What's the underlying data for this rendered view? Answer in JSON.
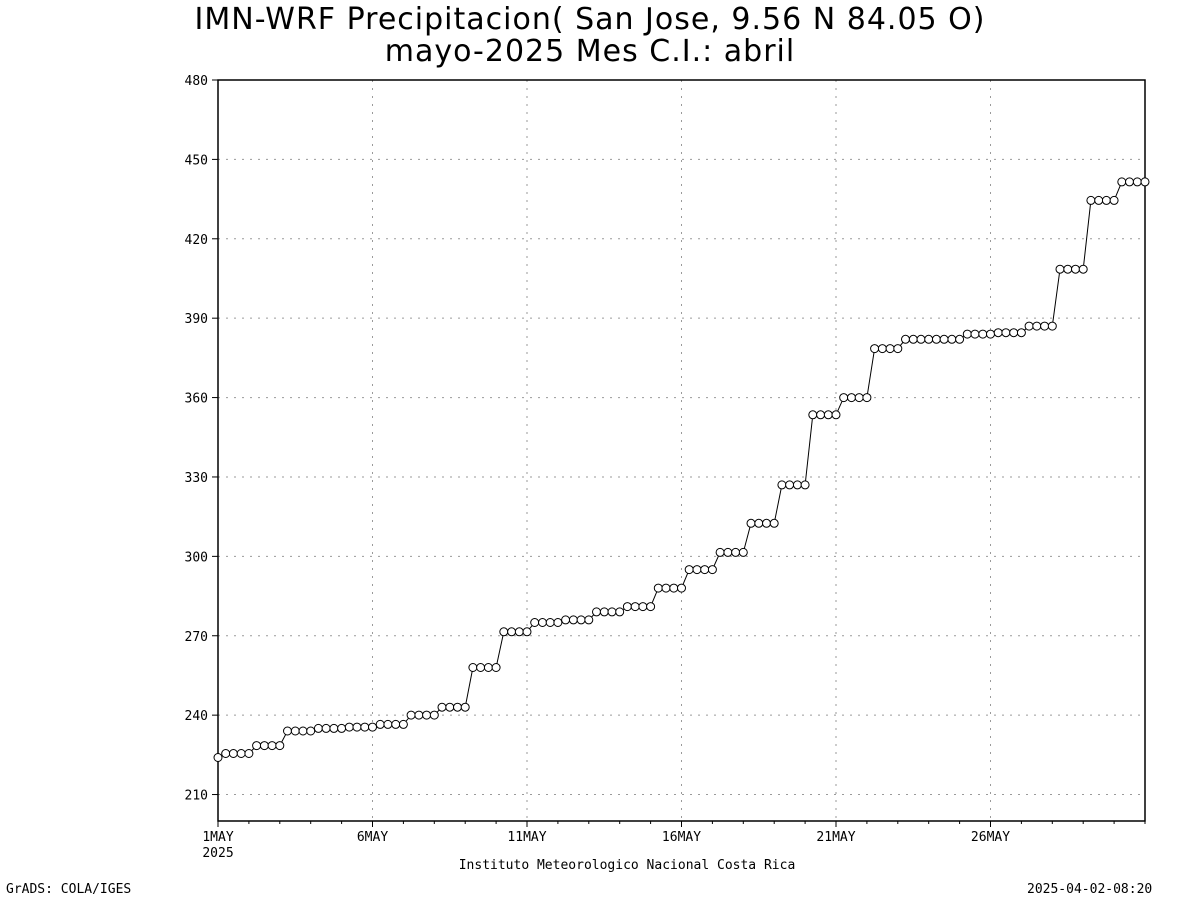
{
  "chart_data": {
    "type": "line",
    "title": "IMN-WRF  Precipitacion( San Jose, 9.56  N 84.05  O)",
    "subtitle": "mayo-2025 Mes C.I.: abril",
    "xlabel": "Instituto Meteorologico Nacional Costa Rica",
    "ylabel": "",
    "ylim": [
      200,
      480
    ],
    "xlim_days": [
      1,
      31
    ],
    "y_ticks": [
      "210",
      "240",
      "270",
      "300",
      "330",
      "360",
      "390",
      "420",
      "450",
      "480"
    ],
    "x_ticks": [
      {
        "day": 1,
        "label": "1MAY",
        "sublabel": "2025"
      },
      {
        "day": 6,
        "label": "6MAY"
      },
      {
        "day": 11,
        "label": "11MAY"
      },
      {
        "day": 16,
        "label": "16MAY"
      },
      {
        "day": 21,
        "label": "21MAY"
      },
      {
        "day": 26,
        "label": "26MAY"
      }
    ],
    "grid": true,
    "marker": "open-circle",
    "series": [
      {
        "x_start_day": 1,
        "step_per_point_day": 0.25,
        "values": [
          224,
          225.5,
          225.5,
          225.5,
          225.5,
          228.5,
          228.5,
          228.5,
          228.5,
          234,
          234,
          234,
          234,
          235,
          235,
          235,
          235,
          235.5,
          235.5,
          235.5,
          235.5,
          236.5,
          236.5,
          236.5,
          236.5,
          240,
          240,
          240,
          240,
          243,
          243,
          243,
          243,
          258,
          258,
          258,
          258,
          271.5,
          271.5,
          271.5,
          271.5,
          275,
          275,
          275,
          275,
          276,
          276,
          276,
          276,
          279,
          279,
          279,
          279,
          281,
          281,
          281,
          281,
          288,
          288,
          288,
          288,
          295,
          295,
          295,
          295,
          301.5,
          301.5,
          301.5,
          301.5,
          312.5,
          312.5,
          312.5,
          312.5,
          327,
          327,
          327,
          327,
          353.5,
          353.5,
          353.5,
          353.5,
          360,
          360,
          360,
          360,
          378.5,
          378.5,
          378.5,
          378.5,
          382,
          382,
          382,
          382,
          382,
          382,
          382,
          382,
          384,
          384,
          384,
          384,
          384.5,
          384.5,
          384.5,
          384.5,
          387,
          387,
          387,
          387,
          408.5,
          408.5,
          408.5,
          408.5,
          434.5,
          434.5,
          434.5,
          434.5,
          441.5,
          441.5,
          441.5,
          441.5
        ]
      }
    ]
  },
  "footer": {
    "left": "GrADS: COLA/IGES",
    "right": "2025-04-02-08:20"
  }
}
